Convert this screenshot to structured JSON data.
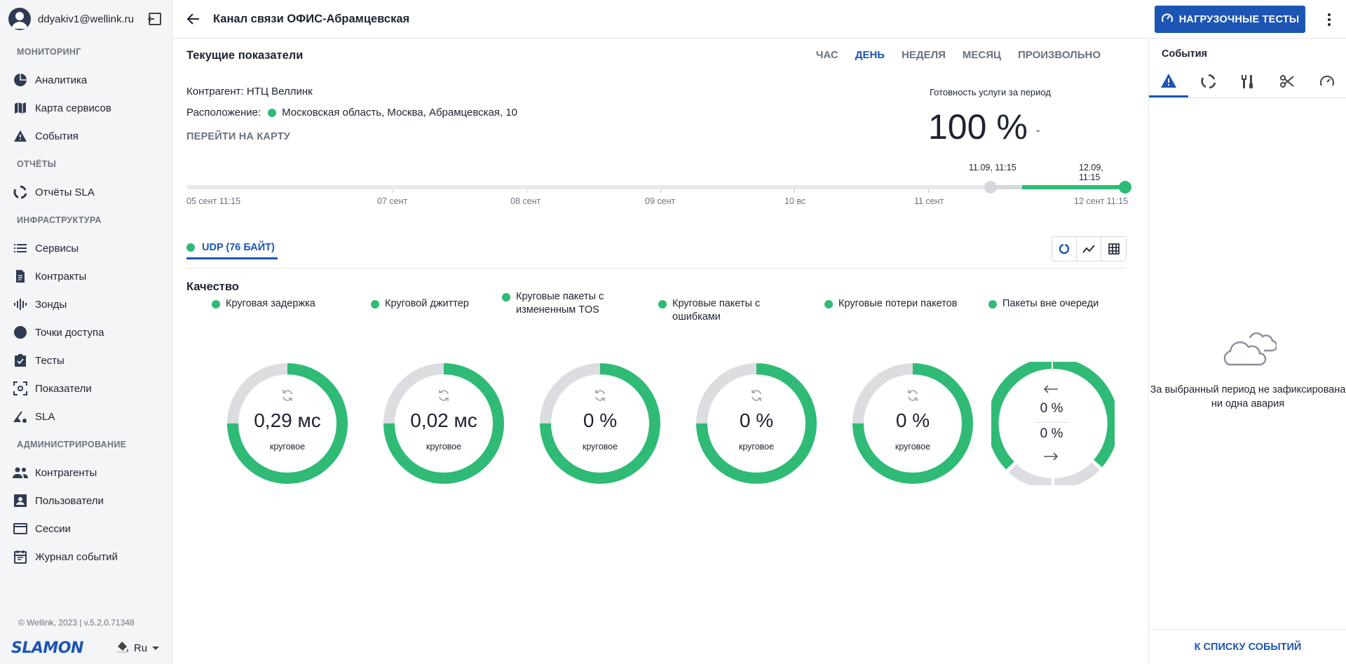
{
  "user": {
    "email": "ddyakiv1@wellink.ru"
  },
  "sidebar": {
    "sections": [
      {
        "title": "МОНИТОРИНГ",
        "items": [
          {
            "label": "Аналитика",
            "icon": "pie-chart-icon"
          },
          {
            "label": "Карта сервисов",
            "icon": "map-icon"
          },
          {
            "label": "События",
            "icon": "warning-icon"
          }
        ]
      },
      {
        "title": "ОТЧЁТЫ",
        "items": [
          {
            "label": "Отчёты SLA",
            "icon": "circle-arrows-icon"
          }
        ]
      },
      {
        "title": "ИНФРАСТРУКТУРА",
        "items": [
          {
            "label": "Сервисы",
            "icon": "list-icon"
          },
          {
            "label": "Контракты",
            "icon": "document-icon"
          },
          {
            "label": "Зонды",
            "icon": "signal-icon"
          },
          {
            "label": "Точки доступа",
            "icon": "dot-icon"
          },
          {
            "label": "Тесты",
            "icon": "checklist-icon"
          },
          {
            "label": "Показатели",
            "icon": "scan-icon"
          },
          {
            "label": "SLA",
            "icon": "gauge-icon"
          }
        ]
      },
      {
        "title": "АДМИНИСТРИРОВАНИЕ",
        "items": [
          {
            "label": "Контрагенты",
            "icon": "people-icon"
          },
          {
            "label": "Пользователи",
            "icon": "user-card-icon"
          },
          {
            "label": "Сессии",
            "icon": "window-icon"
          },
          {
            "label": "Журнал событий",
            "icon": "calendar-icon"
          }
        ]
      }
    ],
    "copyright": "© Wellink, 2023 | v.5.2.0.71348",
    "logo": "SLAMON",
    "language": "Ru"
  },
  "header": {
    "title": "Канал связи ОФИС-Абрамцевская",
    "load_tests_button": "НАГРУЗОЧНЫЕ ТЕСТЫ"
  },
  "main": {
    "current_title": "Текущие показатели",
    "period_tabs": [
      "ЧАС",
      "ДЕНЬ",
      "НЕДЕЛЯ",
      "МЕСЯЦ",
      "ПРОИЗВОЛЬНО"
    ],
    "active_period": "ДЕНЬ",
    "contractor": "Контрагент: НТЦ Веллинк",
    "location_label": "Расположение:",
    "location_value": "Московская область, Москва, Абрамцевская, 10",
    "map_link": "ПЕРЕЙТИ НА КАРТУ",
    "readiness_label": "Готовность услуги за период",
    "readiness_value": "100 %",
    "readiness_dash": "-",
    "timeline": {
      "selection_start": "11.09, 11:15",
      "selection_end": "12.09, 11:15",
      "ticks": [
        "05 сент 11:15",
        "07 сент",
        "08 сент",
        "09 сент",
        "10 вс",
        "11 сент",
        "12 сент 11:15"
      ]
    },
    "test_tab": "UDP (76 БАЙТ)",
    "quality_title": "Качество",
    "metrics": [
      {
        "label": "Круговая задержка",
        "value": "0,29 мс",
        "sub": "круговое",
        "fill": 0.75
      },
      {
        "label": "Круговой джиттер",
        "value": "0,02 мс",
        "sub": "круговое",
        "fill": 0.75
      },
      {
        "label": "Круговые пакеты с измененным TOS",
        "value": "0 %",
        "sub": "круговое",
        "fill": 0.75
      },
      {
        "label": "Круговые пакеты с ошибками",
        "value": "0 %",
        "sub": "круговое",
        "fill": 0.75
      },
      {
        "label": "Круговые потери пакетов",
        "value": "0 %",
        "sub": "круговое",
        "fill": 0.75
      }
    ],
    "out_of_order": {
      "label": "Пакеты вне очереди",
      "value_in": "0 %",
      "value_out": "0 %"
    }
  },
  "events_panel": {
    "title": "События",
    "empty_text": "За выбранный период не зафиксирована ни одна авария",
    "link": "К СПИСКУ СОБЫТИЙ"
  },
  "colors": {
    "accent": "#1c55b4",
    "green": "#2fbb75",
    "grey": "#dcdde1"
  }
}
